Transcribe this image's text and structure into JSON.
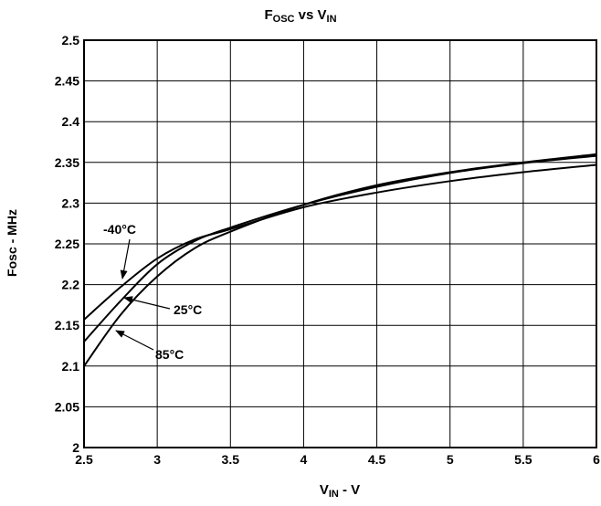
{
  "chart_data": {
    "type": "line",
    "title_parts": {
      "main1": "F",
      "sub1": "OSC",
      "mid": " vs V",
      "sub2": "IN"
    },
    "xlabel_parts": {
      "main1": "V",
      "sub1": "IN",
      "rest": " - V"
    },
    "ylabel": "Fosc - MHz",
    "xlim": [
      2.5,
      6
    ],
    "ylim": [
      2,
      2.5
    ],
    "x_ticks": [
      "2.5",
      "3",
      "3.5",
      "4",
      "4.5",
      "5",
      "5.5",
      "6"
    ],
    "y_ticks": [
      "2",
      "2.05",
      "2.1",
      "2.15",
      "2.2",
      "2.25",
      "2.3",
      "2.35",
      "2.4",
      "2.45",
      "2.5"
    ],
    "grid": true,
    "series": [
      {
        "name": "-40°C",
        "x": [
          2.5,
          2.75,
          3.0,
          3.25,
          3.5,
          4.0,
          4.5,
          5.0,
          5.5,
          6.0
        ],
        "y": [
          2.157,
          2.197,
          2.232,
          2.255,
          2.268,
          2.295,
          2.313,
          2.327,
          2.338,
          2.347
        ]
      },
      {
        "name": "25°C",
        "x": [
          2.5,
          2.75,
          3.0,
          3.25,
          3.5,
          4.0,
          4.5,
          5.0,
          5.5,
          6.0
        ],
        "y": [
          2.13,
          2.18,
          2.225,
          2.253,
          2.27,
          2.298,
          2.32,
          2.337,
          2.349,
          2.358
        ]
      },
      {
        "name": "85°C",
        "x": [
          2.5,
          2.75,
          3.0,
          3.25,
          3.5,
          4.0,
          4.5,
          5.0,
          5.5,
          6.0
        ],
        "y": [
          2.1,
          2.163,
          2.21,
          2.244,
          2.265,
          2.298,
          2.322,
          2.338,
          2.35,
          2.36
        ]
      }
    ],
    "annotations": [
      {
        "text": "-40°C",
        "series": 0
      },
      {
        "text": "25°C",
        "series": 1
      },
      {
        "text": "85°C",
        "series": 2
      }
    ]
  }
}
